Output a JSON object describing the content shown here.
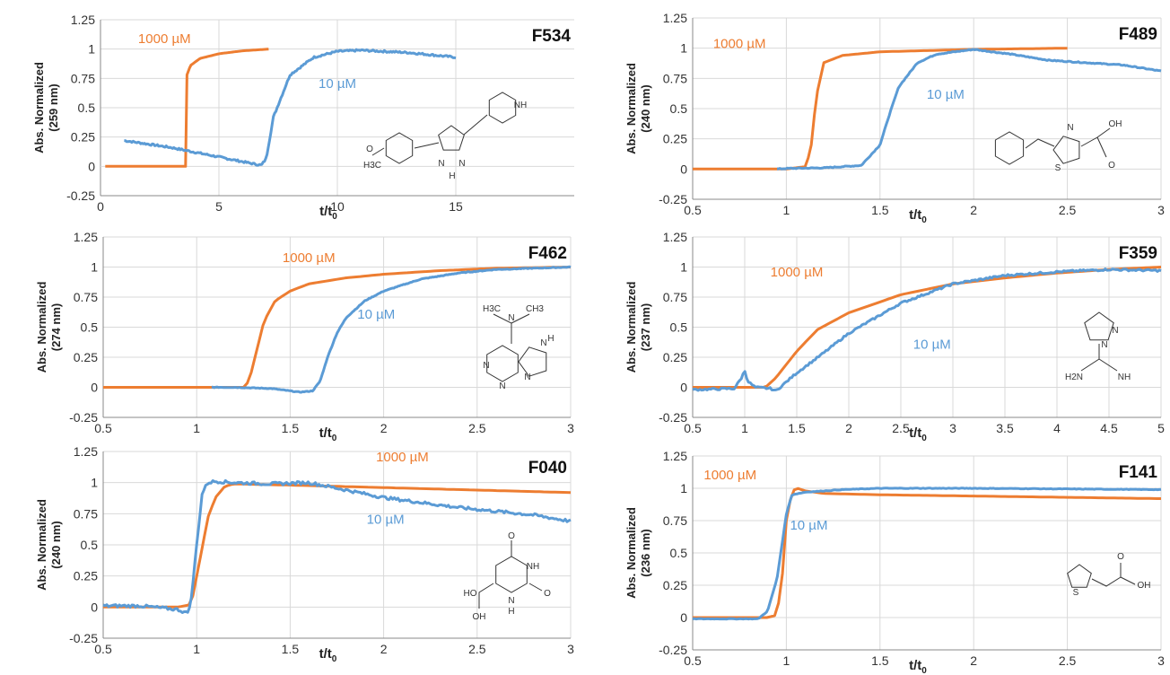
{
  "colors": {
    "c1000": "#ED7D31",
    "c10": "#5B9BD5",
    "grid": "#D9D9D9",
    "axis": "#888888"
  },
  "chart_data": [
    {
      "type": "line",
      "title": "F534",
      "xlabel": "t/t0",
      "xlabel_main": "t/t",
      "xlabel_sub": "0",
      "ylabel_line1": "Abs. Normalized",
      "ylabel_line2": "(259 nm)",
      "xlim": [
        0,
        20
      ],
      "ylim": [
        -0.25,
        1.25
      ],
      "xticks": [
        0,
        5,
        10,
        15
      ],
      "xtick_labels": [
        "0",
        "5",
        "10",
        "15"
      ],
      "yticks": [
        -0.25,
        0,
        0.25,
        0.5,
        0.75,
        1,
        1.25
      ],
      "ytick_labels": [
        "-0.25",
        "0",
        "0.25",
        "0.5",
        "0.75",
        "1",
        "1.25"
      ],
      "grid": true,
      "series": [
        {
          "name": "1000 µM",
          "color": "#ED7D31",
          "noise": 0,
          "x": [
            0.2,
            1,
            2,
            3,
            3.6,
            3.62,
            3.65,
            3.8,
            4.2,
            5,
            6,
            7.1
          ],
          "y": [
            0,
            0,
            0,
            0,
            0,
            0.6,
            0.78,
            0.86,
            0.92,
            0.96,
            0.985,
            1
          ]
        },
        {
          "name": "10 µM",
          "color": "#5B9BD5",
          "noise": 0.008,
          "x": [
            1,
            2,
            3,
            4,
            5,
            6,
            6.5,
            6.8,
            7,
            7.3,
            8,
            9,
            10,
            11,
            12,
            13,
            14,
            15
          ],
          "y": [
            0.22,
            0.19,
            0.16,
            0.12,
            0.08,
            0.04,
            0.02,
            0.01,
            0.07,
            0.42,
            0.78,
            0.93,
            0.98,
            0.99,
            0.98,
            0.97,
            0.95,
            0.93
          ]
        }
      ],
      "annotations": [
        {
          "text": "1000 µM",
          "x": 2.7,
          "y": 1.05,
          "series": 0
        },
        {
          "text": "10 µM",
          "x": 10,
          "y": 0.67,
          "series": 1
        }
      ],
      "molecule": "4-methoxyphenyl-pyrazolyl-piperidine",
      "atom_labels": [
        "H3C",
        "O",
        "N",
        "N",
        "H",
        "NH"
      ]
    },
    {
      "type": "line",
      "title": "F489",
      "xlabel": "t/t0",
      "xlabel_main": "t/t",
      "xlabel_sub": "0",
      "ylabel_line1": "Abs. Normalized",
      "ylabel_line2": "(240 nm)",
      "xlim": [
        0.5,
        3
      ],
      "ylim": [
        -0.25,
        1.25
      ],
      "xticks": [
        0.5,
        1,
        1.5,
        2,
        2.5,
        3
      ],
      "xtick_labels": [
        "0.5",
        "1",
        "1.5",
        "2",
        "2.5",
        "3"
      ],
      "yticks": [
        -0.25,
        0,
        0.25,
        0.5,
        0.75,
        1,
        1.25
      ],
      "ytick_labels": [
        "-0.25",
        "0",
        "0.25",
        "0.5",
        "0.75",
        "1",
        "1.25"
      ],
      "grid": true,
      "series": [
        {
          "name": "1000 µM",
          "color": "#ED7D31",
          "noise": 0,
          "x": [
            0.5,
            1,
            1.1,
            1.13,
            1.16,
            1.2,
            1.3,
            1.5,
            2,
            2.5
          ],
          "y": [
            0,
            0,
            0.02,
            0.15,
            0.6,
            0.88,
            0.94,
            0.97,
            0.99,
            1
          ]
        },
        {
          "name": "10 µM",
          "color": "#5B9BD5",
          "noise": 0.004,
          "x": [
            0.95,
            1,
            1.2,
            1.4,
            1.5,
            1.55,
            1.6,
            1.7,
            1.8,
            1.9,
            2,
            2.2,
            2.4,
            2.6,
            2.8,
            3
          ],
          "y": [
            0,
            0.005,
            0.01,
            0.03,
            0.2,
            0.45,
            0.68,
            0.88,
            0.95,
            0.97,
            0.99,
            0.95,
            0.9,
            0.88,
            0.86,
            0.81
          ]
        }
      ],
      "annotations": [
        {
          "text": "1000 µM",
          "x": 0.75,
          "y": 1.0,
          "series": 0
        },
        {
          "text": "10 µM",
          "x": 1.85,
          "y": 0.58,
          "series": 1
        }
      ],
      "molecule": "2-benzylthiazole-4-carboxylic acid",
      "atom_labels": [
        "N",
        "S",
        "OH",
        "O"
      ]
    },
    {
      "type": "line",
      "title": "F462",
      "xlabel": "t/t0",
      "xlabel_main": "t/t",
      "xlabel_sub": "0",
      "ylabel_line1": "Abs. Normalized",
      "ylabel_line2": "(274 nm)",
      "xlim": [
        0.5,
        3
      ],
      "ylim": [
        -0.25,
        1.25
      ],
      "xticks": [
        0.5,
        1,
        1.5,
        2,
        2.5,
        3
      ],
      "xtick_labels": [
        "0.5",
        "1",
        "1.5",
        "2",
        "2.5",
        "3"
      ],
      "yticks": [
        -0.25,
        0,
        0.25,
        0.5,
        0.75,
        1,
        1.25
      ],
      "ytick_labels": [
        "-0.25",
        "0",
        "0.25",
        "0.5",
        "0.75",
        "1",
        "1.25"
      ],
      "grid": true,
      "series": [
        {
          "name": "1000 µM",
          "color": "#ED7D31",
          "noise": 0,
          "x": [
            0.5,
            1,
            1.25,
            1.28,
            1.32,
            1.36,
            1.42,
            1.5,
            1.6,
            1.8,
            2,
            2.3,
            2.6,
            3
          ],
          "y": [
            0,
            0,
            0,
            0.05,
            0.3,
            0.55,
            0.72,
            0.8,
            0.86,
            0.91,
            0.94,
            0.97,
            0.99,
            1
          ]
        },
        {
          "name": "10 µM",
          "color": "#5B9BD5",
          "noise": 0.003,
          "x": [
            1.08,
            1.2,
            1.4,
            1.55,
            1.62,
            1.66,
            1.7,
            1.75,
            1.8,
            1.9,
            2,
            2.2,
            2.4,
            2.6,
            2.8,
            3
          ],
          "y": [
            0,
            0,
            -0.01,
            -0.04,
            -0.03,
            0.05,
            0.25,
            0.45,
            0.58,
            0.72,
            0.8,
            0.9,
            0.95,
            0.98,
            0.99,
            1
          ]
        }
      ],
      "annotations": [
        {
          "text": "1000 µM",
          "x": 1.6,
          "y": 1.04,
          "series": 0
        },
        {
          "text": "10 µM",
          "x": 1.96,
          "y": 0.57,
          "series": 1
        }
      ],
      "molecule": "N,N-dimethyladenine",
      "atom_labels": [
        "H3C",
        "N",
        "CH3",
        "N",
        "N",
        "N",
        "N",
        "H"
      ]
    },
    {
      "type": "line",
      "title": "F359",
      "xlabel": "t/t0",
      "xlabel_main": "t/t",
      "xlabel_sub": "0",
      "ylabel_line1": "Abs. Normalized",
      "ylabel_line2": "(237 nm)",
      "xlim": [
        0.5,
        5
      ],
      "ylim": [
        -0.25,
        1.25
      ],
      "xticks": [
        0.5,
        1,
        1.5,
        2,
        2.5,
        3,
        3.5,
        4,
        4.5,
        5
      ],
      "xtick_labels": [
        "0.5",
        "1",
        "1.5",
        "2",
        "2.5",
        "3",
        "3.5",
        "4",
        "4.5",
        "5"
      ],
      "yticks": [
        -0.25,
        0,
        0.25,
        0.5,
        0.75,
        1,
        1.25
      ],
      "ytick_labels": [
        "-0.25",
        "0",
        "0.25",
        "0.5",
        "0.75",
        "1",
        "1.25"
      ],
      "grid": true,
      "series": [
        {
          "name": "1000 µM",
          "color": "#ED7D31",
          "noise": 0,
          "x": [
            0.5,
            1,
            1.2,
            1.3,
            1.5,
            1.7,
            2,
            2.5,
            3,
            3.5,
            4,
            4.5,
            5
          ],
          "y": [
            0,
            0,
            0,
            0.08,
            0.3,
            0.48,
            0.62,
            0.77,
            0.86,
            0.91,
            0.95,
            0.98,
            1
          ]
        },
        {
          "name": "10 µM",
          "color": "#5B9BD5",
          "noise": 0.008,
          "x": [
            0.5,
            0.9,
            0.97,
            1,
            1.03,
            1.1,
            1.25,
            1.3,
            1.5,
            1.75,
            2,
            2.5,
            3,
            3.5,
            4,
            4.5,
            5
          ],
          "y": [
            -0.02,
            -0.01,
            0.08,
            0.14,
            0.05,
            0,
            -0.01,
            -0.03,
            0.12,
            0.28,
            0.45,
            0.7,
            0.86,
            0.93,
            0.96,
            0.98,
            0.97
          ]
        }
      ],
      "annotations": [
        {
          "text": "1000 µM",
          "x": 1.5,
          "y": 0.92,
          "series": 0
        },
        {
          "text": "10 µM",
          "x": 2.8,
          "y": 0.32,
          "series": 1
        }
      ],
      "molecule": "pyrazole-1-carboximidamide",
      "atom_labels": [
        "N",
        "N",
        "H2N",
        "NH"
      ]
    },
    {
      "type": "line",
      "title": "F040",
      "xlabel": "t/t0",
      "xlabel_main": "t/t",
      "xlabel_sub": "0",
      "ylabel_line1": "Abs. Normalized",
      "ylabel_line2": "(240 nm)",
      "xlim": [
        0.5,
        3
      ],
      "ylim": [
        -0.25,
        1.25
      ],
      "xticks": [
        0.5,
        1,
        1.5,
        2,
        2.5,
        3
      ],
      "xtick_labels": [
        "0.5",
        "1",
        "1.5",
        "2",
        "2.5",
        "3"
      ],
      "yticks": [
        -0.25,
        0,
        0.25,
        0.5,
        0.75,
        1,
        1.25
      ],
      "ytick_labels": [
        "-0.25",
        "0",
        "0.25",
        "0.5",
        "0.75",
        "1",
        "1.25"
      ],
      "grid": true,
      "series": [
        {
          "name": "1000 µM",
          "color": "#ED7D31",
          "noise": 0,
          "x": [
            0.5,
            0.9,
            0.97,
            1.02,
            1.06,
            1.1,
            1.15,
            1.2,
            1.5,
            2,
            2.5,
            3
          ],
          "y": [
            0,
            0,
            0.02,
            0.4,
            0.72,
            0.88,
            0.97,
            0.99,
            0.98,
            0.96,
            0.94,
            0.92
          ]
        },
        {
          "name": "10 µM",
          "color": "#5B9BD5",
          "noise": 0.012,
          "x": [
            0.5,
            0.7,
            0.9,
            0.95,
            0.97,
            1,
            1.03,
            1.06,
            1.1,
            1.2,
            1.4,
            1.6,
            1.8,
            2,
            2.2,
            2.4,
            2.6,
            2.8,
            3
          ],
          "y": [
            0.01,
            0.01,
            -0.02,
            -0.05,
            0.05,
            0.5,
            0.92,
            1,
            1.01,
            1,
            0.99,
            1,
            0.94,
            0.88,
            0.84,
            0.8,
            0.77,
            0.74,
            0.69
          ]
        }
      ],
      "annotations": [
        {
          "text": "1000 µM",
          "x": 2.1,
          "y": 1.17,
          "series": 0
        },
        {
          "text": "10 µM",
          "x": 2.01,
          "y": 0.67,
          "series": 1
        }
      ],
      "molecule": "dihydroorotic acid",
      "atom_labels": [
        "O",
        "NH",
        "O",
        "N",
        "H",
        "HO",
        "OH"
      ]
    },
    {
      "type": "line",
      "title": "F141",
      "xlabel": "t/t0",
      "xlabel_main": "t/t",
      "xlabel_sub": "0",
      "ylabel_line1": "Abs. Normalized",
      "ylabel_line2": "(236 nm)",
      "xlim": [
        0.5,
        3
      ],
      "ylim": [
        -0.25,
        1.25
      ],
      "xticks": [
        0.5,
        1,
        1.5,
        2,
        2.5,
        3
      ],
      "xtick_labels": [
        "0.5",
        "1",
        "1.5",
        "2",
        "2.5",
        "3"
      ],
      "yticks": [
        -0.25,
        0,
        0.25,
        0.5,
        0.75,
        1,
        1.25
      ],
      "ytick_labels": [
        "-0.25",
        "0",
        "0.25",
        "0.5",
        "0.75",
        "1",
        "1.25"
      ],
      "grid": true,
      "series": [
        {
          "name": "1000 µM",
          "color": "#ED7D31",
          "noise": 0,
          "x": [
            0.5,
            0.9,
            0.95,
            0.98,
            1.0,
            1.03,
            1.06,
            1.1,
            1.2,
            1.5,
            2,
            2.5,
            3
          ],
          "y": [
            0,
            0,
            0.02,
            0.35,
            0.75,
            0.98,
            1,
            0.98,
            0.96,
            0.95,
            0.94,
            0.93,
            0.92
          ]
        },
        {
          "name": "10 µM",
          "color": "#5B9BD5",
          "noise": 0.002,
          "x": [
            0.5,
            0.85,
            0.9,
            0.95,
            1,
            1.03,
            1.1,
            1.3,
            1.5,
            2,
            2.5,
            3
          ],
          "y": [
            -0.01,
            -0.01,
            0.05,
            0.3,
            0.8,
            0.95,
            0.97,
            0.99,
            1,
            1,
            0.995,
            0.99
          ]
        }
      ],
      "annotations": [
        {
          "text": "1000 µM",
          "x": 0.7,
          "y": 1.07,
          "series": 0
        },
        {
          "text": "10 µM",
          "x": 1.12,
          "y": 0.68,
          "series": 1
        }
      ],
      "molecule": "2-thiopheneacetic acid",
      "atom_labels": [
        "S",
        "O",
        "OH"
      ]
    }
  ]
}
